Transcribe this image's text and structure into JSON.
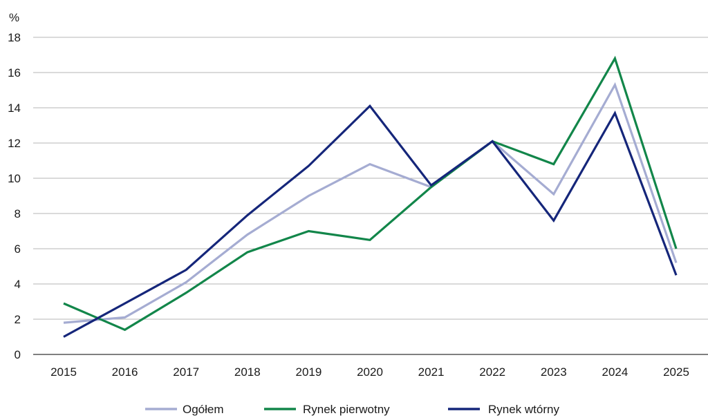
{
  "chart_data": {
    "type": "line",
    "title": "",
    "xlabel": "",
    "ylabel": "%",
    "ylim": [
      0,
      18
    ],
    "yticks": [
      0,
      2,
      4,
      6,
      8,
      10,
      12,
      14,
      16,
      18
    ],
    "x": [
      "2015",
      "2016",
      "2017",
      "2018",
      "2019",
      "2020",
      "2021",
      "2022",
      "2023",
      "2024",
      "2025"
    ],
    "grid": true,
    "legend": "bottom",
    "series": [
      {
        "name": "Ogółem",
        "color": "#a5acd2",
        "values": [
          1.8,
          2.1,
          4.1,
          6.8,
          9.0,
          10.8,
          9.5,
          12.1,
          9.1,
          15.3,
          5.2
        ]
      },
      {
        "name": "Rynek pierwotny",
        "color": "#12864a",
        "values": [
          2.9,
          1.4,
          3.5,
          5.8,
          7.0,
          6.5,
          9.5,
          12.1,
          10.8,
          16.8,
          6.0
        ]
      },
      {
        "name": "Rynek wtórny",
        "color": "#15267a",
        "values": [
          1.0,
          2.9,
          4.8,
          7.9,
          10.7,
          14.1,
          9.6,
          12.1,
          7.6,
          13.7,
          4.5
        ]
      }
    ]
  }
}
